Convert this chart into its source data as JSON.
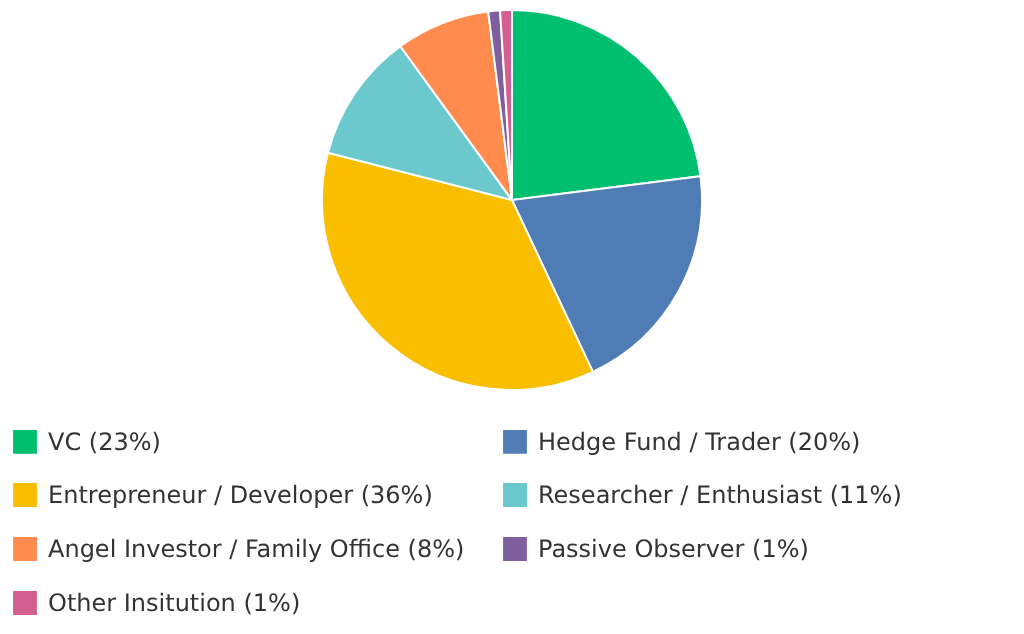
{
  "chart_data": {
    "type": "pie",
    "categories": [
      "VC (23%)",
      "Hedge Fund / Trader (20%)",
      "Entrepreneur / Developer (36%)",
      "Researcher / Enthusiast (11%)",
      "Angel Investor / Family Office (8%)",
      "Passive Observer (1%)",
      "Other Insitution (1%)"
    ],
    "values": [
      23,
      20,
      36,
      11,
      8,
      1,
      1
    ],
    "colors": [
      "#00bf6f",
      "#507cb6",
      "#f9be00",
      "#6bc8cd",
      "#ff8b4f",
      "#7f5fa0",
      "#d25f90"
    ],
    "legend": "bottom"
  }
}
